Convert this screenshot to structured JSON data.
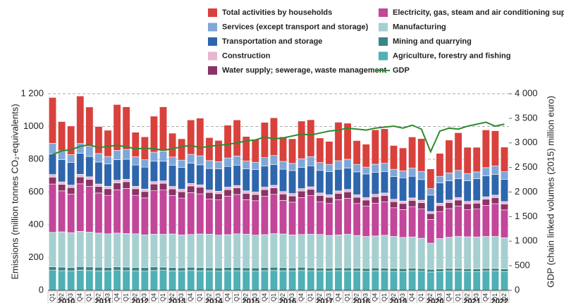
{
  "chart_data": {
    "type": "bar",
    "stacked": true,
    "ylabel": "Emissions (million tonnes CO₂-equivalents)",
    "y2label": "GDP (chain linked volumes (2015) million euro)",
    "categories": [
      "Q1",
      "Q2",
      "Q3",
      "Q4",
      "Q1",
      "Q2",
      "Q3",
      "Q4",
      "Q1",
      "Q2",
      "Q3",
      "Q4",
      "Q1",
      "Q2",
      "Q3",
      "Q4",
      "Q1",
      "Q2",
      "Q3",
      "Q4",
      "Q1",
      "Q2",
      "Q3",
      "Q4",
      "Q1",
      "Q2",
      "Q3",
      "Q4",
      "Q1",
      "Q2",
      "Q3",
      "Q4",
      "Q1",
      "Q2",
      "Q3",
      "Q4",
      "Q1",
      "Q2",
      "Q3",
      "Q4",
      "Q1",
      "Q2",
      "Q3",
      "Q4",
      "Q1",
      "Q2",
      "Q3",
      "Q4",
      "Q1",
      "Q2"
    ],
    "years": [
      "2010",
      "2011",
      "2012",
      "2013",
      "2014",
      "2015",
      "2016",
      "2017",
      "2018",
      "2019",
      "2020",
      "2021",
      "2022"
    ],
    "ylim": [
      0,
      1200
    ],
    "yticks": [
      0,
      200,
      400,
      600,
      800,
      1000,
      {
        "value": 1200,
        "label": "1 200"
      }
    ],
    "y2lim": [
      0,
      4000
    ],
    "y2ticks": [
      0,
      500,
      {
        "value": 1000,
        "label": "1 000"
      },
      {
        "value": 1500,
        "label": "1 500"
      },
      {
        "value": 2000,
        "label": "2 000"
      },
      {
        "value": 2500,
        "label": "2 500"
      },
      {
        "value": 3000,
        "label": "3 000"
      },
      {
        "value": 3500,
        "label": "3 500"
      },
      {
        "value": 4000,
        "label": "4 000"
      }
    ],
    "grid": true,
    "series": [
      {
        "name": "Agriculture, forestry and fishing",
        "color": "#4fb0b5",
        "values": [
          122,
          120,
          118,
          123,
          121,
          119,
          118,
          122,
          120,
          118,
          117,
          121,
          122,
          119,
          118,
          121,
          119,
          118,
          117,
          120,
          120,
          118,
          117,
          120,
          121,
          119,
          118,
          121,
          120,
          118,
          117,
          120,
          119,
          117,
          116,
          119,
          118,
          116,
          115,
          118,
          117,
          112,
          115,
          118,
          118,
          116,
          115,
          118,
          118,
          115
        ]
      },
      {
        "name": "Mining and quarrying",
        "color": "#3a8585",
        "values": [
          22,
          22,
          22,
          22,
          22,
          22,
          22,
          22,
          22,
          22,
          22,
          22,
          20,
          20,
          20,
          20,
          20,
          20,
          20,
          20,
          20,
          20,
          20,
          20,
          20,
          20,
          20,
          20,
          18,
          18,
          18,
          18,
          18,
          18,
          18,
          18,
          18,
          18,
          18,
          18,
          16,
          16,
          16,
          16,
          16,
          16,
          16,
          16,
          16,
          16
        ]
      },
      {
        "name": "Manufacturing",
        "color": "#a6cfd0",
        "values": [
          210,
          215,
          212,
          215,
          212,
          208,
          205,
          205,
          205,
          205,
          200,
          200,
          200,
          205,
          200,
          200,
          205,
          205,
          200,
          200,
          205,
          205,
          200,
          200,
          205,
          205,
          200,
          200,
          205,
          205,
          200,
          200,
          205,
          200,
          195,
          195,
          200,
          195,
          190,
          190,
          185,
          160,
          185,
          190,
          195,
          195,
          195,
          195,
          195,
          190
        ]
      },
      {
        "name": "Electricity, gas, steam and air conditioning supply",
        "color": "#c2469a",
        "values": [
          295,
          250,
          235,
          290,
          280,
          245,
          235,
          265,
          275,
          235,
          225,
          265,
          270,
          235,
          225,
          255,
          245,
          215,
          215,
          235,
          240,
          210,
          210,
          235,
          240,
          205,
          200,
          225,
          235,
          200,
          195,
          215,
          220,
          195,
          185,
          200,
          205,
          175,
          170,
          185,
          180,
          145,
          165,
          175,
          185,
          165,
          170,
          190,
          200,
          170
        ]
      },
      {
        "name": "Water supply; sewerage, waste management",
        "color": "#8a3466",
        "values": [
          42,
          40,
          40,
          42,
          42,
          40,
          40,
          42,
          41,
          40,
          39,
          41,
          41,
          40,
          39,
          41,
          40,
          39,
          38,
          40,
          40,
          39,
          38,
          40,
          40,
          39,
          38,
          40,
          39,
          38,
          38,
          39,
          39,
          38,
          37,
          39,
          38,
          37,
          37,
          38,
          37,
          35,
          36,
          37,
          37,
          36,
          36,
          37,
          37,
          36
        ]
      },
      {
        "name": "Construction",
        "color": "#e8b6d0",
        "values": [
          16,
          15,
          15,
          16,
          16,
          15,
          15,
          16,
          15,
          15,
          15,
          15,
          15,
          15,
          15,
          15,
          15,
          15,
          15,
          15,
          15,
          15,
          15,
          15,
          15,
          15,
          15,
          15,
          15,
          15,
          15,
          15,
          15,
          15,
          15,
          15,
          15,
          15,
          15,
          15,
          15,
          13,
          15,
          15,
          15,
          15,
          15,
          15,
          15,
          15
        ]
      },
      {
        "name": "Transportation and storage",
        "color": "#2e66ad",
        "values": [
          125,
          135,
          138,
          128,
          124,
          134,
          136,
          126,
          122,
          130,
          134,
          124,
          120,
          130,
          134,
          124,
          122,
          132,
          136,
          126,
          124,
          134,
          138,
          128,
          126,
          136,
          140,
          130,
          128,
          138,
          142,
          132,
          130,
          140,
          144,
          134,
          130,
          138,
          142,
          132,
          126,
          100,
          124,
          118,
          116,
          126,
          134,
          128,
          126,
          136
        ]
      },
      {
        "name": "Services (except transport and storage)",
        "color": "#7fa7d8",
        "values": [
          65,
          55,
          48,
          60,
          62,
          52,
          46,
          56,
          60,
          50,
          45,
          55,
          62,
          50,
          44,
          54,
          55,
          48,
          44,
          52,
          56,
          48,
          44,
          52,
          56,
          48,
          44,
          52,
          56,
          48,
          44,
          52,
          54,
          46,
          42,
          50,
          52,
          45,
          42,
          50,
          50,
          40,
          40,
          48,
          50,
          44,
          42,
          50,
          52,
          46
        ]
      },
      {
        "name": "Total activities by households",
        "color": "#d9413c",
        "values": [
          280,
          178,
          175,
          290,
          240,
          165,
          160,
          280,
          260,
          150,
          140,
          220,
          270,
          145,
          130,
          210,
          230,
          140,
          130,
          200,
          220,
          150,
          140,
          215,
          230,
          150,
          150,
          230,
          225,
          150,
          140,
          235,
          220,
          145,
          140,
          210,
          210,
          145,
          140,
          190,
          200,
          120,
          140,
          200,
          230,
          160,
          150,
          230,
          215,
          150
        ]
      },
      {
        "name": "GDP",
        "type": "line",
        "axis": "y2",
        "color": "#2e8b2e",
        "values": [
          2760,
          2840,
          2860,
          2930,
          2960,
          2900,
          2930,
          2950,
          2920,
          2880,
          2890,
          2880,
          2850,
          2880,
          2920,
          2950,
          2900,
          2930,
          2950,
          2970,
          3000,
          3040,
          3060,
          3120,
          3080,
          3100,
          3140,
          3180,
          3160,
          3200,
          3240,
          3260,
          3300,
          3280,
          3260,
          3300,
          3320,
          3340,
          3300,
          3360,
          3280,
          2820,
          3240,
          3300,
          3280,
          3340,
          3380,
          3420,
          3340,
          3380
        ]
      }
    ]
  }
}
